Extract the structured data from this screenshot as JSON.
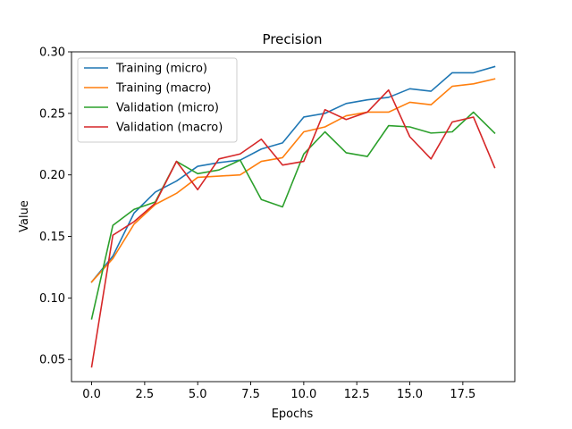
{
  "chart_data": {
    "type": "line",
    "title": "Precision",
    "xlabel": "Epochs",
    "ylabel": "Value",
    "xlim": [
      -0.95,
      19.95
    ],
    "ylim": [
      0.032,
      0.3
    ],
    "x_ticks": [
      0.0,
      2.5,
      5.0,
      7.5,
      10.0,
      12.5,
      15.0,
      17.5
    ],
    "x_tick_labels": [
      "0.0",
      "2.5",
      "5.0",
      "7.5",
      "10.0",
      "12.5",
      "15.0",
      "17.5"
    ],
    "y_ticks": [
      0.05,
      0.1,
      0.15,
      0.2,
      0.25,
      0.3
    ],
    "y_tick_labels": [
      "0.05",
      "0.10",
      "0.15",
      "0.20",
      "0.25",
      "0.30"
    ],
    "legend_position": "top-left",
    "grid": false,
    "x": [
      0,
      1,
      2,
      3,
      4,
      5,
      6,
      7,
      8,
      9,
      10,
      11,
      12,
      13,
      14,
      15,
      16,
      17,
      18,
      19
    ],
    "series": [
      {
        "name": "Training (micro)",
        "color": "#1f77b4",
        "values": [
          0.113,
          0.134,
          0.169,
          0.186,
          0.195,
          0.207,
          0.21,
          0.212,
          0.221,
          0.226,
          0.247,
          0.25,
          0.258,
          0.261,
          0.263,
          0.27,
          0.268,
          0.283,
          0.283,
          0.288
        ]
      },
      {
        "name": "Training (macro)",
        "color": "#ff7f0e",
        "values": [
          0.113,
          0.132,
          0.16,
          0.176,
          0.185,
          0.198,
          0.199,
          0.2,
          0.211,
          0.214,
          0.235,
          0.239,
          0.248,
          0.251,
          0.251,
          0.259,
          0.257,
          0.272,
          0.274,
          0.278
        ]
      },
      {
        "name": "Validation (micro)",
        "color": "#2ca02c",
        "values": [
          0.083,
          0.159,
          0.172,
          0.178,
          0.211,
          0.201,
          0.204,
          0.212,
          0.18,
          0.174,
          0.217,
          0.235,
          0.218,
          0.215,
          0.24,
          0.239,
          0.234,
          0.235,
          0.251,
          0.234
        ]
      },
      {
        "name": "Validation (macro)",
        "color": "#d62728",
        "values": [
          0.044,
          0.151,
          0.162,
          0.177,
          0.211,
          0.188,
          0.213,
          0.217,
          0.229,
          0.208,
          0.211,
          0.253,
          0.245,
          0.251,
          0.269,
          0.231,
          0.213,
          0.243,
          0.247,
          0.206
        ]
      }
    ]
  }
}
